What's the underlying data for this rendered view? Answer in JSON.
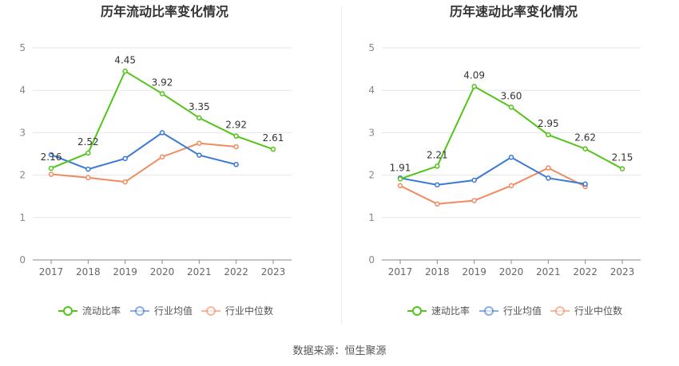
{
  "source": "数据来源：恒生聚源",
  "colors": {
    "series1": "#52c41a",
    "series2": "#3a78d8",
    "series3": "#f28a60"
  },
  "chart_data": [
    {
      "type": "line",
      "title": "历年流动比率变化情况",
      "categories": [
        "2017",
        "2018",
        "2019",
        "2020",
        "2021",
        "2022",
        "2023"
      ],
      "ylim": [
        0,
        5
      ],
      "yticks": [
        0,
        1,
        2,
        3,
        4,
        5
      ],
      "grid": true,
      "legend_position": "bottom",
      "series": [
        {
          "name": "流动比率",
          "values": [
            2.16,
            2.52,
            4.45,
            3.92,
            3.35,
            2.92,
            2.61
          ],
          "labels": [
            "2.16",
            "2.52",
            "4.45",
            "3.92",
            "3.35",
            "2.92",
            "2.61"
          ]
        },
        {
          "name": "行业均值",
          "values": [
            2.48,
            2.14,
            2.39,
            3.0,
            2.47,
            2.25,
            null
          ]
        },
        {
          "name": "行业中位数",
          "values": [
            2.02,
            1.94,
            1.84,
            2.43,
            2.75,
            2.67,
            null
          ]
        }
      ]
    },
    {
      "type": "line",
      "title": "历年速动比率变化情况",
      "categories": [
        "2017",
        "2018",
        "2019",
        "2020",
        "2021",
        "2022",
        "2023"
      ],
      "ylim": [
        0,
        5
      ],
      "yticks": [
        0,
        1,
        2,
        3,
        4,
        5
      ],
      "grid": true,
      "legend_position": "bottom",
      "series": [
        {
          "name": "速动比率",
          "values": [
            1.91,
            2.21,
            4.09,
            3.6,
            2.95,
            2.62,
            2.15
          ],
          "labels": [
            "1.91",
            "2.21",
            "4.09",
            "3.60",
            "2.95",
            "2.62",
            "2.15"
          ]
        },
        {
          "name": "行业均值",
          "values": [
            1.93,
            1.77,
            1.88,
            2.42,
            1.93,
            1.79,
            null
          ]
        },
        {
          "name": "行业中位数",
          "values": [
            1.75,
            1.32,
            1.4,
            1.75,
            2.17,
            1.73,
            null
          ]
        }
      ]
    }
  ]
}
